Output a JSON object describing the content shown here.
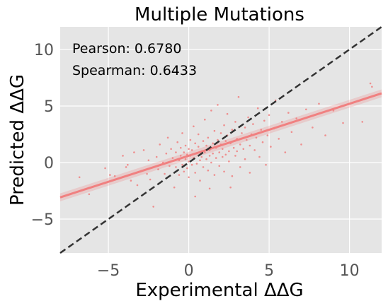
{
  "chart_data": {
    "type": "scatter",
    "title": "Multiple Mutations",
    "xlabel": "Experimental ΔΔG",
    "ylabel": "Predicted ΔΔG",
    "xlim": [
      -8,
      12
    ],
    "ylim": [
      -8,
      12
    ],
    "xticks": [
      -5,
      0,
      5,
      10
    ],
    "xtick_labels": [
      "−5",
      "0",
      "5",
      "10"
    ],
    "yticks": [
      -5,
      0,
      5,
      10
    ],
    "ytick_labels": [
      "−5",
      "0",
      "5",
      "10"
    ],
    "grid": true,
    "annotations": {
      "pearson": "Pearson: 0.6780",
      "spearman": "Spearman: 0.6433"
    },
    "regression": {
      "slope": 0.46,
      "intercept": 0.6
    },
    "reference_line": {
      "type": "y=x"
    },
    "colors": {
      "points": "#f08080",
      "regression": "#f08080",
      "reference": "#333333",
      "background": "#e5e5e5",
      "grid": "#ffffff"
    },
    "points": [
      [
        -5.2,
        -0.5
      ],
      [
        -4.6,
        -1.2
      ],
      [
        -4.1,
        0.6
      ],
      [
        -3.8,
        -0.2
      ],
      [
        -3.4,
        0.9
      ],
      [
        -3.2,
        -2.0
      ],
      [
        -3.0,
        -0.8
      ],
      [
        -2.8,
        1.1
      ],
      [
        -2.5,
        0.2
      ],
      [
        -2.4,
        -1.5
      ],
      [
        -2.2,
        -3.9
      ],
      [
        -2.0,
        0.5
      ],
      [
        -1.9,
        -0.6
      ],
      [
        -1.8,
        1.6
      ],
      [
        -1.6,
        0.0
      ],
      [
        -1.5,
        -1.0
      ],
      [
        -1.4,
        0.8
      ],
      [
        -1.3,
        2.2
      ],
      [
        -1.2,
        -0.3
      ],
      [
        -1.1,
        1.2
      ],
      [
        -1.0,
        0.4
      ],
      [
        -0.9,
        -2.2
      ],
      [
        -0.8,
        0.9
      ],
      [
        -0.8,
        -0.4
      ],
      [
        -0.7,
        1.8
      ],
      [
        -0.6,
        0.2
      ],
      [
        -0.6,
        -1.1
      ],
      [
        -0.5,
        1.3
      ],
      [
        -0.5,
        0.6
      ],
      [
        -0.4,
        -0.2
      ],
      [
        -0.4,
        2.6
      ],
      [
        -0.3,
        0.9
      ],
      [
        -0.3,
        -0.8
      ],
      [
        -0.2,
        1.5
      ],
      [
        -0.2,
        0.3
      ],
      [
        -0.1,
        0.7
      ],
      [
        -0.1,
        -0.5
      ],
      [
        0.0,
        1.2
      ],
      [
        0.0,
        0.1
      ],
      [
        0.0,
        -1.3
      ],
      [
        0.1,
        2.0
      ],
      [
        0.1,
        0.6
      ],
      [
        0.2,
        -0.2
      ],
      [
        0.2,
        1.1
      ],
      [
        0.3,
        0.4
      ],
      [
        0.3,
        3.2
      ],
      [
        0.4,
        -0.9
      ],
      [
        0.4,
        1.7
      ],
      [
        0.5,
        0.8
      ],
      [
        0.5,
        -0.1
      ],
      [
        0.6,
        1.4
      ],
      [
        0.6,
        2.5
      ],
      [
        0.7,
        0.2
      ],
      [
        0.7,
        -1.6
      ],
      [
        0.8,
        1.0
      ],
      [
        0.8,
        0.5
      ],
      [
        0.9,
        1.9
      ],
      [
        0.9,
        -0.4
      ],
      [
        1.0,
        0.9
      ],
      [
        1.0,
        3.8
      ],
      [
        1.1,
        0.3
      ],
      [
        1.1,
        1.5
      ],
      [
        1.2,
        -0.7
      ],
      [
        1.2,
        2.2
      ],
      [
        1.3,
        0.6
      ],
      [
        1.3,
        1.1
      ],
      [
        1.4,
        4.6
      ],
      [
        1.4,
        0.0
      ],
      [
        1.5,
        1.7
      ],
      [
        1.5,
        0.8
      ],
      [
        1.6,
        2.8
      ],
      [
        1.6,
        -1.1
      ],
      [
        1.7,
        1.3
      ],
      [
        1.7,
        0.4
      ],
      [
        1.8,
        2.0
      ],
      [
        1.8,
        5.1
      ],
      [
        1.9,
        0.9
      ],
      [
        1.9,
        -0.3
      ],
      [
        2.0,
        1.6
      ],
      [
        2.0,
        2.6
      ],
      [
        2.1,
        0.5
      ],
      [
        2.1,
        1.2
      ],
      [
        2.2,
        3.3
      ],
      [
        2.2,
        -0.8
      ],
      [
        2.3,
        1.9
      ],
      [
        2.3,
        0.7
      ],
      [
        2.4,
        2.4
      ],
      [
        2.4,
        4.3
      ],
      [
        2.5,
        1.0
      ],
      [
        2.5,
        0.1
      ],
      [
        2.6,
        1.7
      ],
      [
        2.7,
        2.9
      ],
      [
        2.7,
        -1.2
      ],
      [
        2.8,
        1.3
      ],
      [
        2.9,
        3.6
      ],
      [
        2.9,
        0.6
      ],
      [
        3.0,
        2.1
      ],
      [
        3.0,
        1.0
      ],
      [
        3.1,
        5.8
      ],
      [
        3.2,
        1.6
      ],
      [
        3.2,
        -0.4
      ],
      [
        3.3,
        2.6
      ],
      [
        3.4,
        1.2
      ],
      [
        3.5,
        3.1
      ],
      [
        3.5,
        0.3
      ],
      [
        3.6,
        2.0
      ],
      [
        3.7,
        4.0
      ],
      [
        3.8,
        1.5
      ],
      [
        3.8,
        -0.9
      ],
      [
        3.9,
        2.5
      ],
      [
        4.0,
        3.4
      ],
      [
        4.1,
        1.1
      ],
      [
        4.2,
        2.2
      ],
      [
        4.3,
        4.8
      ],
      [
        4.4,
        0.5
      ],
      [
        4.5,
        2.9
      ],
      [
        4.6,
        1.8
      ],
      [
        4.7,
        3.7
      ],
      [
        4.8,
        -0.2
      ],
      [
        4.9,
        2.4
      ],
      [
        5.0,
        4.2
      ],
      [
        5.1,
        1.4
      ],
      [
        5.3,
        3.0
      ],
      [
        5.4,
        5.5
      ],
      [
        5.6,
        2.1
      ],
      [
        5.8,
        3.6
      ],
      [
        6.0,
        0.9
      ],
      [
        6.2,
        4.4
      ],
      [
        6.4,
        2.7
      ],
      [
        6.7,
        3.9
      ],
      [
        7.0,
        1.6
      ],
      [
        7.3,
        4.7
      ],
      [
        7.7,
        3.1
      ],
      [
        8.1,
        5.2
      ],
      [
        8.5,
        2.4
      ],
      [
        9.0,
        4.6
      ],
      [
        9.6,
        3.5
      ],
      [
        10.2,
        5.3
      ],
      [
        10.8,
        3.6
      ],
      [
        11.3,
        7.0
      ],
      [
        11.4,
        6.7
      ],
      [
        -2.6,
        -1.0
      ],
      [
        -3.6,
        -1.6
      ],
      [
        -6.2,
        -2.8
      ],
      [
        -6.8,
        -1.3
      ],
      [
        -4.9,
        -1.1
      ],
      [
        -3.9,
        -0.4
      ],
      [
        1.3,
        -2.3
      ],
      [
        0.4,
        -3.0
      ],
      [
        2.6,
        -2.2
      ]
    ]
  }
}
